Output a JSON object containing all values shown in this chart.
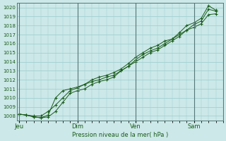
{
  "title": "Pression niveau de la mer( hPa )",
  "bg_color": "#cce8e8",
  "grid_color": "#99cccc",
  "line_color": "#1a5c1a",
  "ylim": [
    1007.5,
    1020.5
  ],
  "yticks": [
    1008,
    1009,
    1010,
    1011,
    1012,
    1013,
    1014,
    1015,
    1016,
    1017,
    1018,
    1019,
    1020
  ],
  "xtick_labels": [
    "Jeu",
    "Dim",
    "Ven",
    "Sam"
  ],
  "xtick_positions": [
    0,
    24,
    48,
    72
  ],
  "vline_positions": [
    0,
    24,
    48,
    72
  ],
  "xlim": [
    -1,
    84
  ],
  "series1_x": [
    0,
    3,
    6,
    9,
    12,
    15,
    18,
    21,
    24,
    27,
    30,
    33,
    36,
    39,
    42,
    45,
    48,
    51,
    54,
    57,
    60,
    63,
    66,
    69,
    72,
    75,
    78,
    81
  ],
  "series1_y": [
    1008.2,
    1008.1,
    1008.0,
    1008.0,
    1008.5,
    1009.2,
    1010.0,
    1010.8,
    1011.1,
    1011.5,
    1011.8,
    1012.0,
    1012.3,
    1012.5,
    1013.0,
    1013.5,
    1014.2,
    1014.8,
    1015.2,
    1015.5,
    1016.0,
    1016.5,
    1017.0,
    1017.5,
    1018.1,
    1018.5,
    1019.8,
    1019.6
  ],
  "series2_x": [
    0,
    3,
    6,
    9,
    12,
    15,
    18,
    21,
    24,
    27,
    30,
    33,
    36,
    39,
    42,
    45,
    48,
    51,
    54,
    57,
    60,
    63,
    66,
    69,
    72,
    75,
    78,
    81
  ],
  "series2_y": [
    1008.2,
    1008.1,
    1007.9,
    1007.8,
    1008.1,
    1010.0,
    1010.8,
    1011.0,
    1011.2,
    1011.5,
    1012.0,
    1012.3,
    1012.5,
    1012.8,
    1013.2,
    1013.8,
    1014.5,
    1015.0,
    1015.5,
    1015.8,
    1016.3,
    1016.5,
    1017.2,
    1018.0,
    1018.3,
    1018.8,
    1020.2,
    1019.7
  ],
  "series3_x": [
    0,
    3,
    6,
    9,
    12,
    15,
    18,
    21,
    24,
    27,
    30,
    33,
    36,
    39,
    42,
    45,
    48,
    51,
    54,
    57,
    60,
    63,
    66,
    69,
    72,
    75,
    78,
    81
  ],
  "series3_y": [
    1008.2,
    1008.1,
    1007.9,
    1007.8,
    1007.9,
    1008.5,
    1009.5,
    1010.5,
    1010.8,
    1011.0,
    1011.5,
    1011.8,
    1012.0,
    1012.3,
    1013.0,
    1013.5,
    1014.0,
    1014.5,
    1015.0,
    1015.3,
    1015.8,
    1016.3,
    1016.8,
    1017.5,
    1017.8,
    1018.2,
    1019.2,
    1019.3
  ]
}
